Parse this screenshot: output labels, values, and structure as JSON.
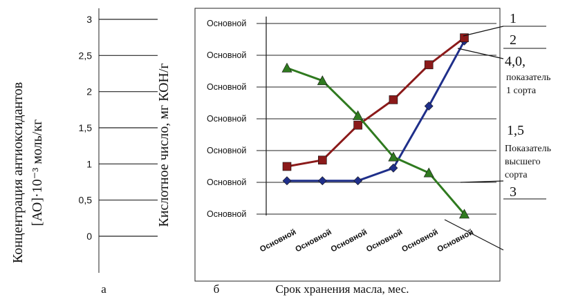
{
  "labels": {
    "left_axis_title_line1": "Концентрация      антиоксидантов",
    "left_axis_title_line2": "[АО]·10⁻³ моль/кг",
    "right_axis_title": "Кислотное число, мг КОН/г",
    "x_axis_title": "Срок хранения масла, мес.",
    "panel_a": "а",
    "panel_b": "б",
    "callout_1": "1",
    "callout_2": "2",
    "callout_3": "3",
    "val_4": "4,0,",
    "val_4_desc_line1": "показатель",
    "val_4_desc_line2": "1 сорта",
    "val_15": "1,5",
    "val_15_desc_line1": "Показатель",
    "val_15_desc_line2": "высшего",
    "val_15_desc_line3": "сорта"
  },
  "chart_data": [
    {
      "type": "axis",
      "panel": "а",
      "ylabel": "Концентрация антиоксидантов [АО]·10⁻³ моль/кг",
      "yticks": [
        "3",
        "2,5",
        "2",
        "1,5",
        "1",
        "0,5",
        "0"
      ],
      "ylim": [
        0,
        3
      ],
      "grid": true
    },
    {
      "type": "line",
      "panel": "б",
      "xlabel": "Срок хранения масла, мес.",
      "ylabel": "Кислотное число, мг КОН/г",
      "categories": [
        "Основной",
        "Основной",
        "Основной",
        "Основной",
        "Основной",
        "Основной"
      ],
      "ytick_labels": [
        "Основной",
        "Основной",
        "Основной",
        "Основной",
        "Основной",
        "Основной",
        "Основной"
      ],
      "ylim": [
        0,
        6
      ],
      "grid": true,
      "series": [
        {
          "name": "1",
          "color": "#1f2f8a",
          "marker": "diamond",
          "values": [
            1.05,
            1.05,
            1.05,
            1.45,
            3.4,
            5.45
          ]
        },
        {
          "name": "2",
          "color": "#8b1a1a",
          "marker": "square",
          "values": [
            1.5,
            1.7,
            2.8,
            3.6,
            4.7,
            5.55
          ]
        },
        {
          "name": "3",
          "color": "#2f7a1f",
          "marker": "triangle",
          "values": [
            4.6,
            4.2,
            3.1,
            1.8,
            1.3,
            0.0
          ]
        }
      ]
    }
  ]
}
